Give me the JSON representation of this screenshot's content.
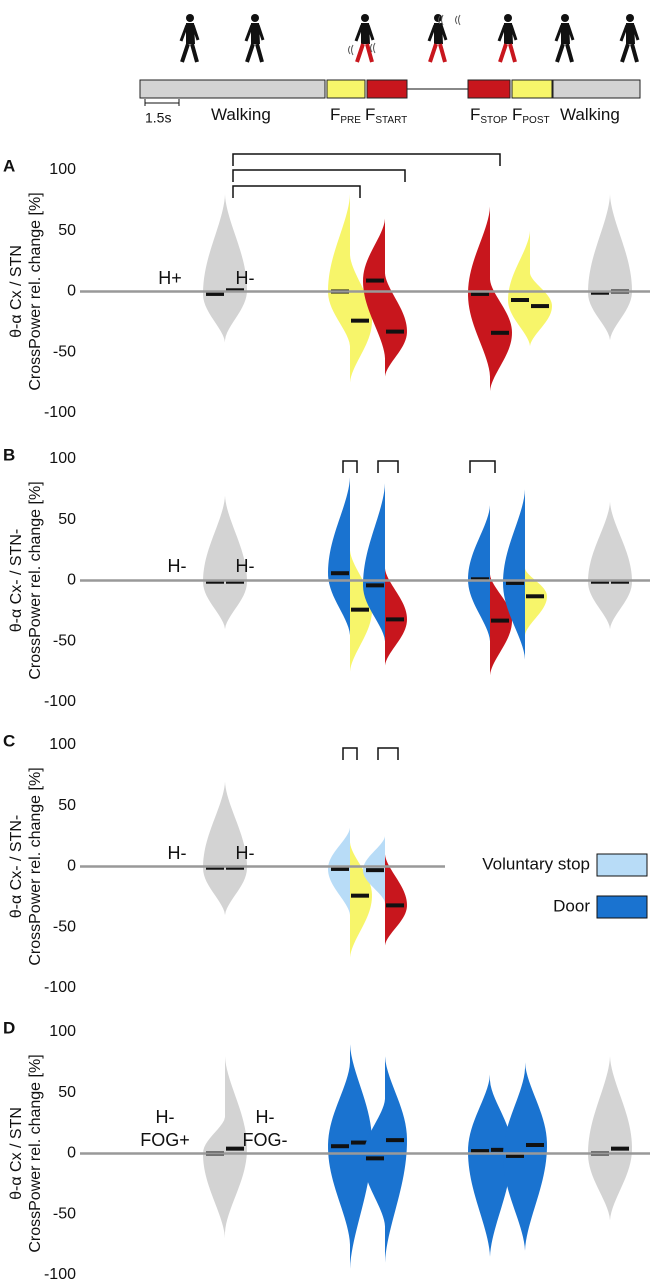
{
  "timeline": {
    "scale_label": "1.5s",
    "phases": [
      {
        "main": "Walking"
      },
      {
        "main": "F",
        "sub": "PRE"
      },
      {
        "main": "F",
        "sub": "START"
      },
      {
        "main": "F",
        "sub": "STOP"
      },
      {
        "main": "F",
        "sub": "POST"
      },
      {
        "main": "Walking"
      }
    ]
  },
  "chart_data": [
    {
      "type": "violin",
      "label": "A",
      "ylabel": [
        "θ-α Cx / STN",
        "CrossPower rel. change [%]"
      ],
      "ylim": [
        -100,
        100
      ],
      "yticks": [
        -100,
        -50,
        0,
        50,
        100
      ],
      "annotations": [
        [
          "H+"
        ],
        [
          "H-"
        ]
      ],
      "violins": [
        {
          "color": "#d3d3d3",
          "median": -2,
          "min": -42,
          "max": 80
        },
        {
          "color": "#d3d3d3",
          "median": 1,
          "min": -40,
          "max": 80
        },
        {
          "color": "#f7f56a",
          "median": 0,
          "min": -45,
          "max": 80
        },
        {
          "color": "#f7f56a",
          "median": -24,
          "min": -75,
          "max": 30
        },
        {
          "color": "#c8161d",
          "median": 9,
          "min": -55,
          "max": 60
        },
        {
          "color": "#c8161d",
          "median": -33,
          "min": -70,
          "max": 15
        },
        {
          "color": "#c8161d",
          "median": -2,
          "min": -70,
          "max": 70
        },
        {
          "color": "#c8161d",
          "median": -34,
          "min": -82,
          "max": 10
        },
        {
          "color": "#f7f56a",
          "median": -7,
          "min": -45,
          "max": 50
        },
        {
          "color": "#f7f56a",
          "median": -12,
          "min": -45,
          "max": 15
        },
        {
          "color": "#d3d3d3",
          "median": -1,
          "min": -40,
          "max": 80
        },
        {
          "color": "#d3d3d3",
          "median": 0,
          "min": -40,
          "max": 80
        }
      ]
    },
    {
      "type": "violin",
      "label": "B",
      "ylabel": [
        "θ-α Cx- / STN-",
        "CrossPower rel. change [%]"
      ],
      "ylim": [
        -100,
        100
      ],
      "yticks": [
        -100,
        -50,
        0,
        50,
        100
      ],
      "annotations": [
        [
          "H-"
        ],
        [
          "H-"
        ]
      ],
      "violins": [
        {
          "color": "#d3d3d3",
          "median": -1,
          "min": -40,
          "max": 70
        },
        {
          "color": "#d3d3d3",
          "median": -1,
          "min": -40,
          "max": 70
        },
        {
          "color": "#1a73d0",
          "median": 6,
          "min": -45,
          "max": 85
        },
        {
          "color": "#f7f56a",
          "median": -24,
          "min": -75,
          "max": 25
        },
        {
          "color": "#1a73d0",
          "median": -4,
          "min": -50,
          "max": 80
        },
        {
          "color": "#c8161d",
          "median": -32,
          "min": -70,
          "max": 10
        },
        {
          "color": "#1a73d0",
          "median": 1,
          "min": -50,
          "max": 62
        },
        {
          "color": "#c8161d",
          "median": -33,
          "min": -78,
          "max": 5
        },
        {
          "color": "#1a73d0",
          "median": -2,
          "min": -65,
          "max": 75
        },
        {
          "color": "#f7f56a",
          "median": -13,
          "min": -45,
          "max": 10
        },
        {
          "color": "#d3d3d3",
          "median": -1,
          "min": -40,
          "max": 65
        },
        {
          "color": "#d3d3d3",
          "median": -1,
          "min": -40,
          "max": 65
        }
      ]
    },
    {
      "type": "violin",
      "label": "C",
      "ylabel": [
        "θ-α Cx- / STN-",
        "CrossPower rel. change [%]"
      ],
      "ylim": [
        -100,
        100
      ],
      "yticks": [
        -100,
        -50,
        0,
        50,
        100
      ],
      "annotations": [
        [
          "H-"
        ],
        [
          "H-"
        ]
      ],
      "legend": [
        {
          "name": "Voluntary stop",
          "color": "#b8dcf7"
        },
        {
          "name": "Door",
          "color": "#1a73d0"
        }
      ],
      "violins": [
        {
          "color": "#d3d3d3",
          "median": -1,
          "min": -40,
          "max": 70
        },
        {
          "color": "#d3d3d3",
          "median": -1,
          "min": -40,
          "max": 70
        },
        {
          "color": "#b8dcf7",
          "median": -2,
          "min": -40,
          "max": 32
        },
        {
          "color": "#f7f56a",
          "median": -24,
          "min": -75,
          "max": 20
        },
        {
          "color": "#b8dcf7",
          "median": -3,
          "min": -30,
          "max": 25
        },
        {
          "color": "#c8161d",
          "median": -32,
          "min": -65,
          "max": 10
        }
      ]
    },
    {
      "type": "violin",
      "label": "D",
      "ylabel": [
        "θ-α Cx / STN",
        "CrossPower rel. change [%]"
      ],
      "ylim": [
        -100,
        100
      ],
      "yticks": [
        -100,
        -50,
        0,
        50,
        100
      ],
      "annotations": [
        [
          "H-",
          "FOG+"
        ],
        [
          "H-",
          "FOG-"
        ]
      ],
      "violins": [
        {
          "color": "#d3d3d3",
          "median": 0,
          "min": -70,
          "max": 30
        },
        {
          "color": "#d3d3d3",
          "median": 4,
          "min": -65,
          "max": 80
        },
        {
          "color": "#1a73d0",
          "median": 6,
          "min": -75,
          "max": 75
        },
        {
          "color": "#1a73d0",
          "median": 9,
          "min": -95,
          "max": 90
        },
        {
          "color": "#1a73d0",
          "median": -4,
          "min": -60,
          "max": 45
        },
        {
          "color": "#1a73d0",
          "median": 11,
          "min": -90,
          "max": 80
        },
        {
          "color": "#1a73d0",
          "median": 2,
          "min": -85,
          "max": 65
        },
        {
          "color": "#1a73d0",
          "median": 3,
          "min": -85,
          "max": 60
        },
        {
          "color": "#1a73d0",
          "median": -2,
          "min": -80,
          "max": 70
        },
        {
          "color": "#1a73d0",
          "median": 7,
          "min": -80,
          "max": 75
        },
        {
          "color": "#d3d3d3",
          "median": 0,
          "min": -55,
          "max": 80
        },
        {
          "color": "#d3d3d3",
          "median": 4,
          "min": -55,
          "max": 80
        }
      ]
    }
  ]
}
